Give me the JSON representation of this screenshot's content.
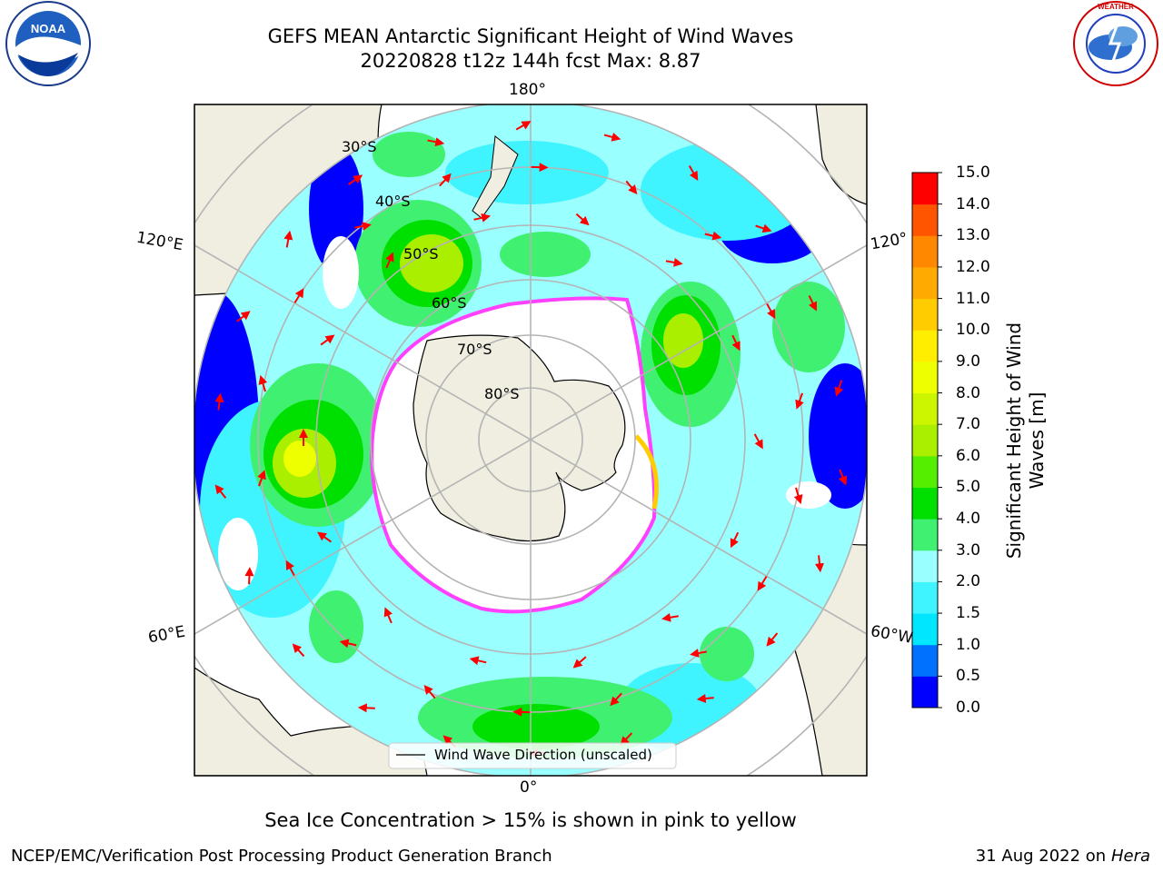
{
  "title": "GEFS MEAN Antarctic Significant Height of Wind Waves",
  "subtitle": "20220828 t12z 144h fcst   Max: 8.87",
  "note": "Sea Ice Concentration > 15% is shown in pink to yellow",
  "footer_left": "NCEP/EMC/Verification Post Processing Product Generation Branch",
  "footer_right_date": "31 Aug 2022 on",
  "footer_right_machine": "Hera",
  "logos": {
    "left": "NOAA",
    "right": "NATIONAL WEATHER SERVICE"
  },
  "legend": {
    "label": "Wind Wave Direction (unscaled)"
  },
  "longitude_labels": [
    "180°",
    "120°E",
    "120°",
    "60°E",
    "60°W",
    "0°"
  ],
  "latitude_labels": [
    "30°S",
    "40°S",
    "50°S",
    "60°S",
    "70°S",
    "80°S"
  ],
  "colorbar": {
    "label": "Significant Height of Wind Waves [m]",
    "label_line1": "Significant Height of Wind",
    "label_line2": "Waves [m]",
    "ticks": [
      "0.0",
      "0.5",
      "1.0",
      "1.5",
      "2.0",
      "3.0",
      "4.0",
      "5.0",
      "6.0",
      "7.0",
      "8.0",
      "9.0",
      "10.0",
      "11.0",
      "12.0",
      "13.0",
      "14.0",
      "15.0"
    ],
    "colors": [
      "#0000ff",
      "#0070ff",
      "#00e6ff",
      "#40f4ff",
      "#99ffff",
      "#40f070",
      "#00e000",
      "#55ee00",
      "#aaee00",
      "#ccf500",
      "#eeff00",
      "#ffee00",
      "#ffcc00",
      "#ffaa00",
      "#ff8800",
      "#ff5500",
      "#ff0000"
    ]
  },
  "colors": {
    "land": "#efeee0",
    "ice_edge": "#ff40ff",
    "arrows": "#ff0000",
    "grid": "#b4b4b4"
  }
}
